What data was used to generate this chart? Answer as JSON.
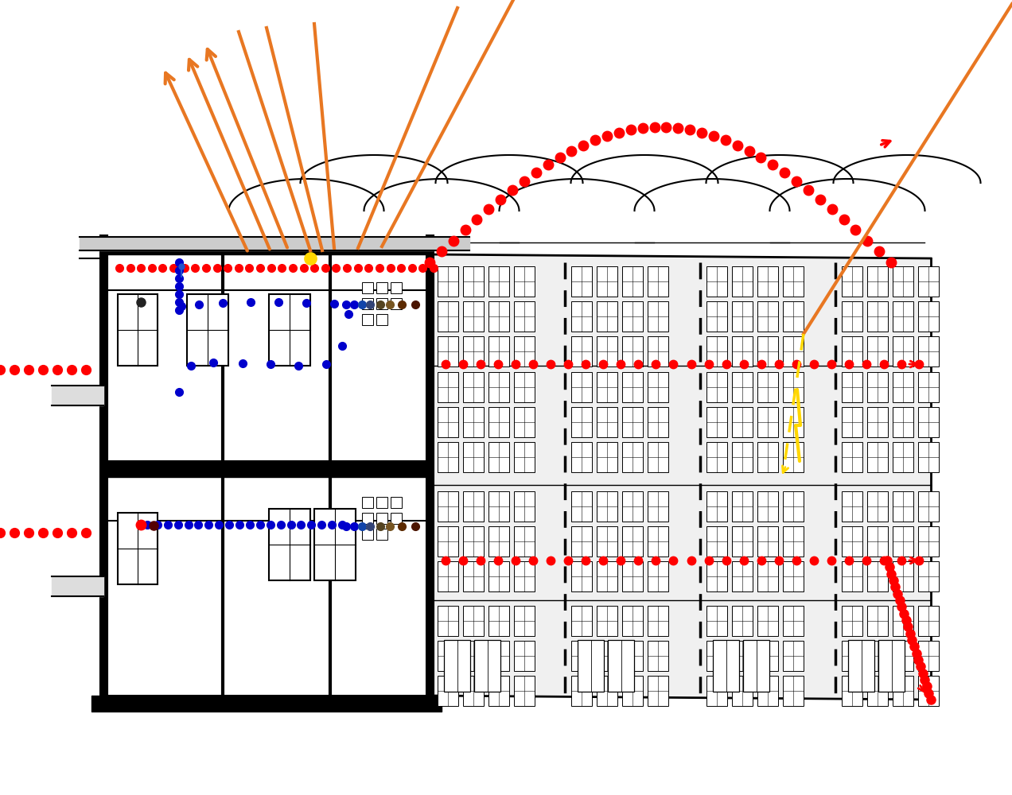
{
  "bg_color": "#ffffff",
  "orange_color": "#E87722",
  "red_color": "#FF0000",
  "blue_color": "#0000CC",
  "black_color": "#000000",
  "dark_brown": "#5C2A00",
  "yellow_color": "#FFD700",
  "gray_color": "#aaaaaa",
  "light_gray": "#f0f0f0",
  "figsize": [
    12.72,
    10.0
  ],
  "dpi": 100
}
